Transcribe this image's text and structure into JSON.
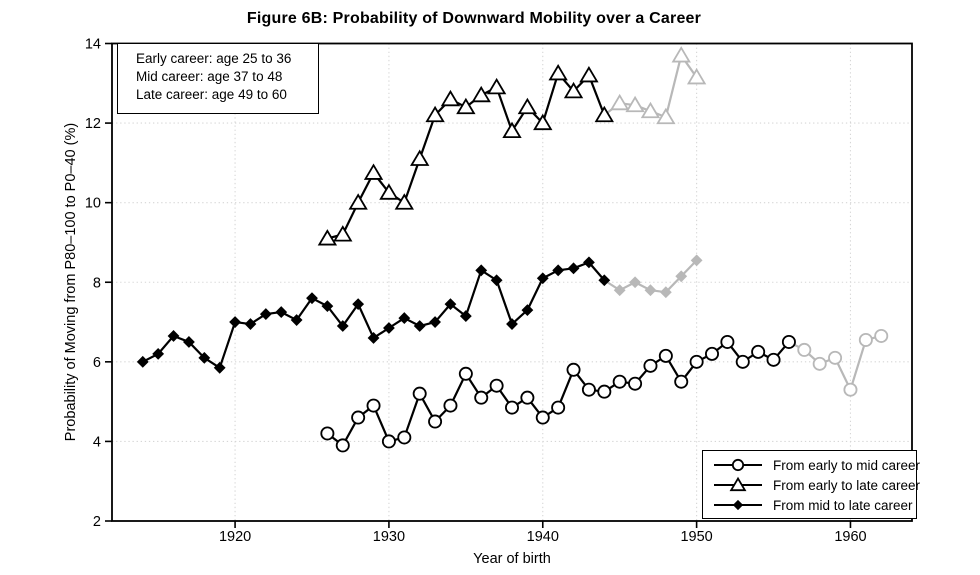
{
  "chart_data": {
    "type": "line",
    "title": "Figure 6B: Probability of Downward Mobility over a Career",
    "xlabel": "Year of birth",
    "ylabel": "Probability of Moving from P80–100 to P0–40 (%)",
    "xlim": [
      1912,
      1964
    ],
    "ylim": [
      2,
      14
    ],
    "xticks": [
      1920,
      1930,
      1940,
      1950,
      1960
    ],
    "yticks": [
      2,
      4,
      6,
      8,
      10,
      12,
      14
    ],
    "grid": true,
    "legend_position": "bottom-right",
    "annotation_box": {
      "position": "top-left",
      "lines": [
        "Early career: age 25 to 36",
        "Mid career: age 37 to 48",
        "Late career: age 49 to 60"
      ]
    },
    "colors": {
      "line": "#000000",
      "muted": "#b8b8b8",
      "grid": "#d6d6d6",
      "background": "#ffffff"
    },
    "series": [
      {
        "name": "From early to mid career",
        "marker": "circle-open",
        "muted_from_x": 1957,
        "x": [
          1926,
          1927,
          1928,
          1929,
          1930,
          1931,
          1932,
          1933,
          1934,
          1935,
          1936,
          1937,
          1938,
          1939,
          1940,
          1941,
          1942,
          1943,
          1944,
          1945,
          1946,
          1947,
          1948,
          1949,
          1950,
          1951,
          1952,
          1953,
          1954,
          1955,
          1956,
          1957,
          1958,
          1959,
          1960,
          1961,
          1962
        ],
        "y": [
          4.2,
          3.9,
          4.6,
          4.9,
          4.0,
          4.1,
          5.2,
          4.5,
          4.9,
          5.7,
          5.1,
          5.4,
          4.85,
          5.1,
          4.6,
          4.85,
          5.8,
          5.3,
          5.25,
          5.5,
          5.45,
          5.9,
          6.15,
          5.5,
          6.0,
          6.2,
          6.5,
          6.0,
          6.25,
          6.05,
          6.5,
          6.3,
          5.95,
          6.1,
          5.3,
          6.55,
          6.65
        ]
      },
      {
        "name": "From early to late career",
        "marker": "triangle-open",
        "muted_from_x": 1945,
        "x": [
          1926,
          1927,
          1928,
          1929,
          1930,
          1931,
          1932,
          1933,
          1934,
          1935,
          1936,
          1937,
          1938,
          1939,
          1940,
          1941,
          1942,
          1943,
          1944,
          1945,
          1946,
          1947,
          1948,
          1949,
          1950
        ],
        "y": [
          9.1,
          9.2,
          10.0,
          10.75,
          10.25,
          10.0,
          11.1,
          12.2,
          12.6,
          12.4,
          12.7,
          12.9,
          11.8,
          12.4,
          12.0,
          13.25,
          12.8,
          13.2,
          12.2,
          12.5,
          12.45,
          12.3,
          12.15,
          13.7,
          13.15
        ]
      },
      {
        "name": "From mid to late career",
        "marker": "diamond-filled",
        "muted_from_x": 1945,
        "x": [
          1914,
          1915,
          1916,
          1917,
          1918,
          1919,
          1920,
          1921,
          1922,
          1923,
          1924,
          1925,
          1926,
          1927,
          1928,
          1929,
          1930,
          1931,
          1932,
          1933,
          1934,
          1935,
          1936,
          1937,
          1938,
          1939,
          1940,
          1941,
          1942,
          1943,
          1944,
          1945,
          1946,
          1947,
          1948,
          1949,
          1950
        ],
        "y": [
          6.0,
          6.2,
          6.65,
          6.5,
          6.1,
          5.85,
          7.0,
          6.95,
          7.2,
          7.25,
          7.05,
          7.6,
          7.4,
          6.9,
          7.45,
          6.6,
          6.85,
          7.1,
          6.9,
          7.0,
          7.45,
          7.15,
          8.3,
          8.05,
          6.95,
          7.3,
          8.1,
          8.3,
          8.35,
          8.5,
          8.05,
          7.8,
          8.0,
          7.8,
          7.75,
          8.15,
          8.55
        ]
      }
    ]
  }
}
